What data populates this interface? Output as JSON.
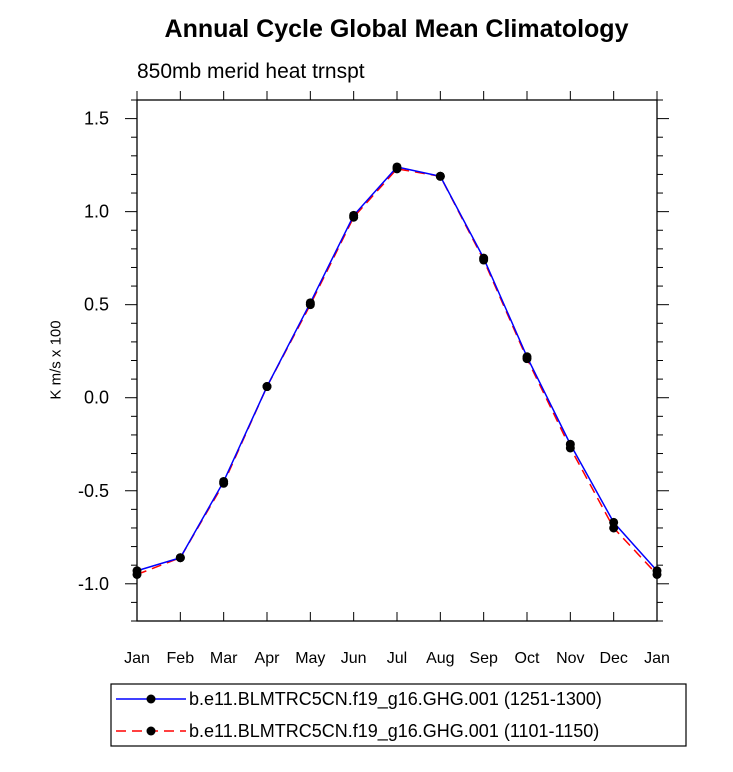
{
  "chart_data": {
    "type": "line",
    "title": "Annual Cycle Global Mean Climatology",
    "subtitle": "850mb merid heat trnspt",
    "ylabel": "K m/s x 100",
    "xlabel": "",
    "categories": [
      "Jan",
      "Feb",
      "Mar",
      "Apr",
      "May",
      "Jun",
      "Jul",
      "Aug",
      "Sep",
      "Oct",
      "Nov",
      "Dec",
      "Jan"
    ],
    "ylim": [
      -1.2,
      1.6
    ],
    "yticks": [
      -1.0,
      -0.5,
      0.0,
      0.5,
      1.0,
      1.5
    ],
    "ytick_labels": [
      "-1.0",
      "-0.5",
      "0.0",
      "0.5",
      "1.0",
      "1.5"
    ],
    "grid": false,
    "legend_position": "bottom",
    "series": [
      {
        "name": "b.e11.BLMTRC5CN.f19_g16.GHG.001 (1251-1300)",
        "color": "#0000ff",
        "line_style": "solid",
        "marker": "filled-circle",
        "values": [
          -0.93,
          -0.86,
          -0.45,
          0.06,
          0.51,
          0.98,
          1.24,
          1.19,
          0.75,
          0.22,
          -0.25,
          -0.67,
          -0.93
        ]
      },
      {
        "name": "b.e11.BLMTRC5CN.f19_g16.GHG.001 (1101-1150)",
        "color": "#ff0000",
        "line_style": "dashed",
        "marker": "filled-circle",
        "values": [
          -0.95,
          -0.86,
          -0.46,
          0.06,
          0.5,
          0.97,
          1.23,
          1.19,
          0.74,
          0.21,
          -0.27,
          -0.7,
          -0.95
        ]
      }
    ]
  }
}
